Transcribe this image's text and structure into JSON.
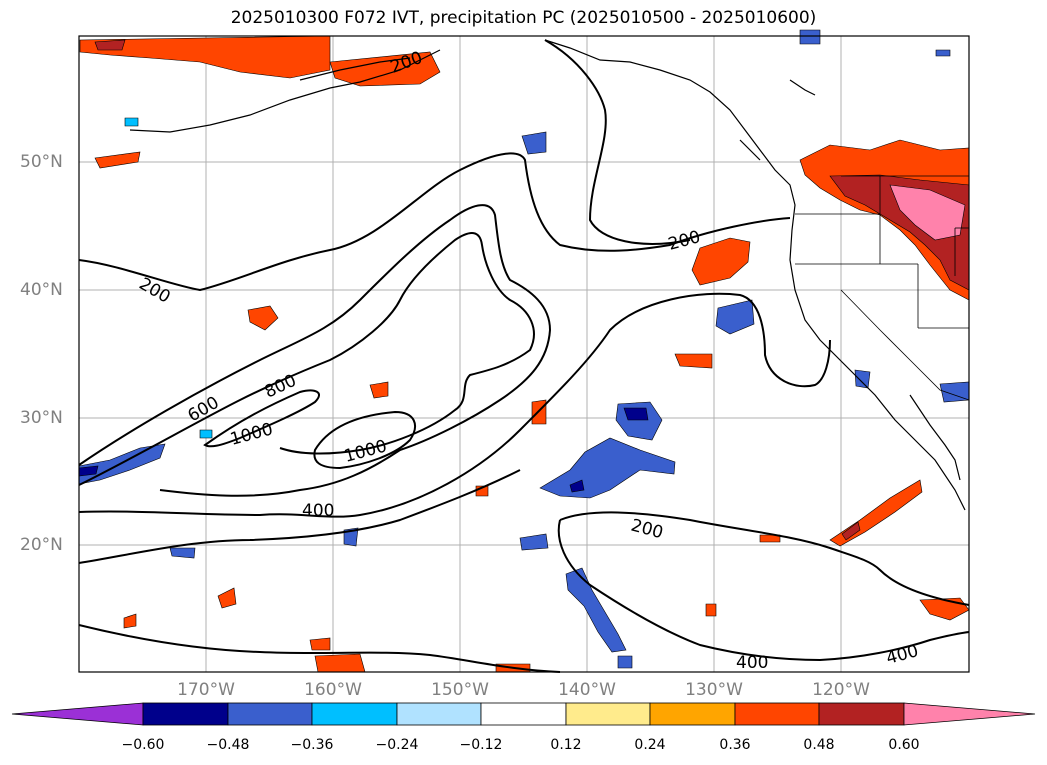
{
  "title": "2025010300 F072 IVT, precipitation PC (2025010500 - 2025010600)",
  "lat_labels": [
    "50°N",
    "40°N",
    "30°N",
    "20°N"
  ],
  "lon_labels": [
    "170°W",
    "160°W",
    "150°W",
    "140°W",
    "130°W",
    "120°W"
  ],
  "contour_labels": [
    "200",
    "200",
    "200",
    "200",
    "400",
    "400",
    "400",
    "600",
    "800",
    "1000",
    "1000"
  ],
  "colorbar": {
    "ticks": [
      "−0.60",
      "−0.48",
      "−0.36",
      "−0.24",
      "−0.12",
      "0.12",
      "0.24",
      "0.36",
      "0.48",
      "0.60"
    ],
    "colors": [
      "#9b30d6",
      "#00008b",
      "#3a5fcd",
      "#00bfff",
      "#b0e2ff",
      "#ffffff",
      "#ffeb8c",
      "#ffa500",
      "#ff4500",
      "#b22222",
      "#ff82ab"
    ]
  }
}
